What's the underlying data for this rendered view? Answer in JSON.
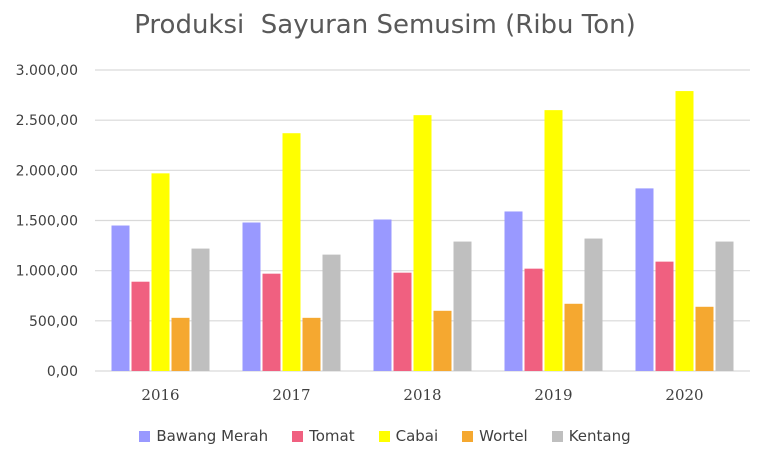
{
  "chart_data": {
    "type": "bar",
    "title": "Produksi  Sayuran Semusim (Ribu Ton)",
    "xlabel": "",
    "ylabel": "",
    "ylim": [
      0,
      3000
    ],
    "yticks": [
      "0,00",
      "500,00",
      "1.000,00",
      "1.500,00",
      "2.000,00",
      "2.500,00",
      "3.000,00"
    ],
    "grid": true,
    "legend_position": "bottom",
    "categories": [
      "2016",
      "2017",
      "2018",
      "2019",
      "2020"
    ],
    "series": [
      {
        "name": "Bawang Merah",
        "color": "#9999FF",
        "values": [
          1450,
          1480,
          1510,
          1590,
          1820
        ]
      },
      {
        "name": "Tomat",
        "color": "#F06080",
        "values": [
          890,
          970,
          980,
          1020,
          1090
        ]
      },
      {
        "name": "Cabai",
        "color": "#FFFF00",
        "values": [
          1970,
          2370,
          2550,
          2600,
          2790
        ]
      },
      {
        "name": "Wortel",
        "color": "#F5A830",
        "values": [
          530,
          530,
          600,
          670,
          640
        ]
      },
      {
        "name": "Kentang",
        "color": "#BFBFBF",
        "values": [
          1220,
          1160,
          1290,
          1320,
          1290
        ]
      }
    ]
  }
}
